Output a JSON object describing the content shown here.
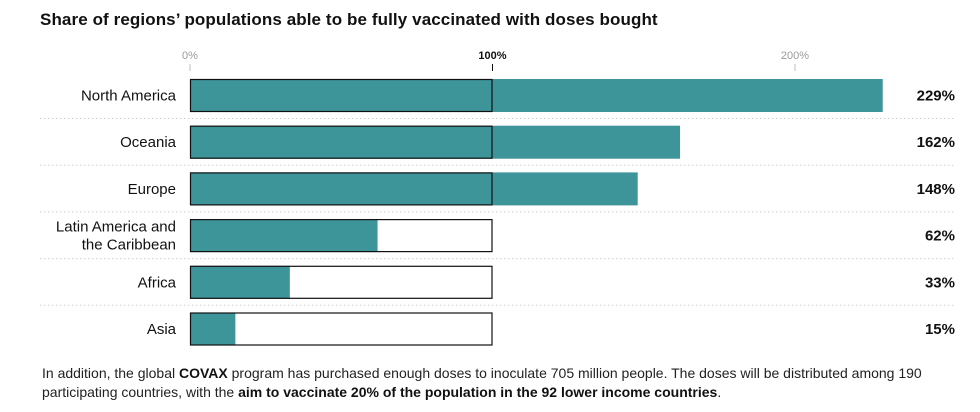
{
  "title": "Share of regions’ populations able to be fully vaccinated with doses bought",
  "chart_data": {
    "type": "bar",
    "orientation": "horizontal",
    "title": "Share of regions’ populations able to be fully vaccinated with doses bought",
    "categories": [
      [
        "North America"
      ],
      [
        "Oceania"
      ],
      [
        "Europe"
      ],
      [
        "Latin America and",
        "the Caribbean"
      ],
      [
        "Africa"
      ],
      [
        "Asia"
      ]
    ],
    "values": [
      229,
      162,
      148,
      62,
      33,
      15
    ],
    "value_labels": [
      "229%",
      "162%",
      "148%",
      "62%",
      "33%",
      "15%"
    ],
    "x_ticks": [
      0,
      100,
      200
    ],
    "x_tick_labels": [
      "0%",
      "100%",
      "200%"
    ],
    "reference_value": 100,
    "xlim": [
      0,
      229
    ],
    "colors": {
      "bar": "#3d9499",
      "outline": "#111111",
      "tick": "#bdbdbd",
      "divider": "#cfcfcf"
    }
  },
  "footnote": {
    "p1": "In addition, the global ",
    "b1": "COVAX",
    "p2": " program has purchased enough doses to inoculate 705 million people. The doses will be distributed among 190 participating countries, with the ",
    "b2": "aim to vaccinate 20% of the population in the 92 lower income countries",
    "p3": "."
  }
}
